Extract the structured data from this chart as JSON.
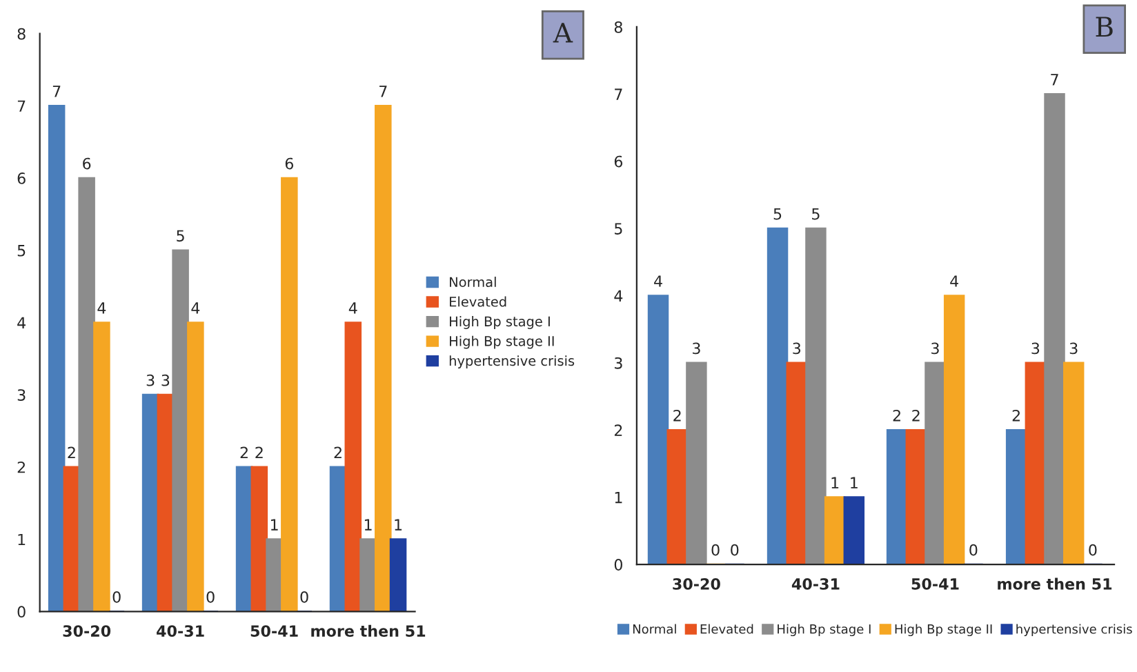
{
  "chart_data": [
    {
      "type": "bar",
      "categories": [
        "30-20",
        "40-31",
        "50-41",
        "more then 51"
      ],
      "ylim": [
        0,
        8
      ],
      "yticks": [
        0,
        1,
        2,
        3,
        4,
        5,
        6,
        7,
        8
      ],
      "data_labels": true,
      "legend": "right",
      "grid": false,
      "annotations": [
        "A"
      ],
      "series": [
        {
          "name": "Normal",
          "color": "#4a7ebb",
          "values": [
            7,
            3,
            2,
            2
          ]
        },
        {
          "name": "Elevated",
          "color": "#e8541f",
          "values": [
            2,
            3,
            2,
            4
          ]
        },
        {
          "name": "High Bp stage I",
          "color": "#8c8c8c",
          "values": [
            6,
            5,
            1,
            1
          ]
        },
        {
          "name": "High Bp stage II",
          "color": "#f5a623",
          "values": [
            4,
            4,
            6,
            7
          ]
        },
        {
          "name": "hypertensive crisis",
          "color": "#1f3fa0",
          "values": [
            0,
            0,
            0,
            1
          ]
        }
      ]
    },
    {
      "type": "bar",
      "categories": [
        "30-20",
        "40-31",
        "50-41",
        "more then 51"
      ],
      "ylim": [
        0,
        8
      ],
      "yticks": [
        0,
        1,
        2,
        3,
        4,
        5,
        6,
        7,
        8
      ],
      "data_labels": true,
      "legend": "bottom",
      "grid": false,
      "annotations": [
        "B"
      ],
      "series": [
        {
          "name": "Normal",
          "color": "#4a7ebb",
          "values": [
            4,
            5,
            2,
            2
          ]
        },
        {
          "name": "Elevated",
          "color": "#e8541f",
          "values": [
            2,
            3,
            2,
            3
          ]
        },
        {
          "name": "High Bp stage I",
          "color": "#8c8c8c",
          "values": [
            3,
            5,
            3,
            7
          ]
        },
        {
          "name": "High Bp stage II",
          "color": "#f5a623",
          "values": [
            0,
            1,
            4,
            3
          ]
        },
        {
          "name": "hypertensive crisis",
          "color": "#1f3fa0",
          "values": [
            0,
            1,
            0,
            0
          ]
        }
      ]
    }
  ]
}
